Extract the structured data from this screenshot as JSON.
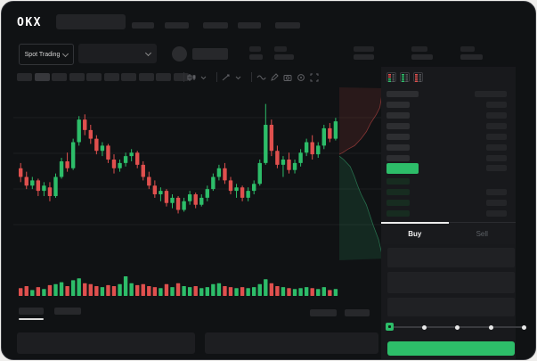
{
  "navbar": {
    "logo": "OKX",
    "nav_item_count": 5,
    "search_placeholder": ""
  },
  "subheader": {
    "market_type": "Spot Trading",
    "stat_group_count": 5
  },
  "toolbar": {
    "timeframe_button_count": 10,
    "icons": [
      "candle-style-icon",
      "chevron-down-icon",
      "compare-icon",
      "chevron-down-icon",
      "wave-icon",
      "draw-icon",
      "camera-icon",
      "settings-icon",
      "fullscreen-icon"
    ]
  },
  "orderbook": {
    "view_icons": [
      "combined-book-icon",
      "bids-book-icon",
      "asks-book-icon"
    ],
    "ask_row_count": 6,
    "bid_rows": [
      {
        "has_amount": false
      },
      {
        "has_amount": true
      },
      {
        "has_amount": true
      },
      {
        "has_amount": true
      }
    ],
    "price_highlight_color": "#2dbd69"
  },
  "trade_panel": {
    "buy_tab": "Buy",
    "sell_tab": "Sell",
    "slider_stop_count": 5,
    "slider_value_pct": 0,
    "buy_button_color": "#2dbd69"
  },
  "chart_data": {
    "type": "candlestick",
    "title": "",
    "note": "OHLC values in normalized price units; no axis tick labels are visible in the screenshot",
    "price_range": [
      0,
      100
    ],
    "grid": true,
    "candles": [
      [
        55,
        58,
        47,
        50
      ],
      [
        50,
        53,
        43,
        45
      ],
      [
        45,
        50,
        43,
        48
      ],
      [
        48,
        49,
        39,
        42
      ],
      [
        42,
        47,
        39,
        45
      ],
      [
        44,
        47,
        36,
        39
      ],
      [
        39,
        52,
        38,
        50
      ],
      [
        50,
        61,
        49,
        59
      ],
      [
        59,
        64,
        53,
        55
      ],
      [
        55,
        72,
        54,
        70
      ],
      [
        70,
        85,
        68,
        83
      ],
      [
        83,
        86,
        74,
        77
      ],
      [
        77,
        80,
        69,
        72
      ],
      [
        72,
        74,
        63,
        65
      ],
      [
        65,
        70,
        62,
        68
      ],
      [
        68,
        69,
        58,
        60
      ],
      [
        60,
        63,
        52,
        55
      ],
      [
        55,
        60,
        53,
        58
      ],
      [
        58,
        64,
        56,
        62
      ],
      [
        62,
        66,
        59,
        64
      ],
      [
        64,
        65,
        55,
        57
      ],
      [
        57,
        59,
        48,
        50
      ],
      [
        50,
        53,
        43,
        45
      ],
      [
        45,
        48,
        38,
        40
      ],
      [
        40,
        44,
        36,
        42
      ],
      [
        42,
        43,
        33,
        35
      ],
      [
        35,
        40,
        32,
        38
      ],
      [
        38,
        39,
        29,
        31
      ],
      [
        31,
        38,
        30,
        36
      ],
      [
        36,
        42,
        34,
        40
      ],
      [
        40,
        41,
        32,
        34
      ],
      [
        34,
        40,
        33,
        38
      ],
      [
        38,
        45,
        36,
        43
      ],
      [
        43,
        52,
        42,
        50
      ],
      [
        50,
        57,
        48,
        55
      ],
      [
        55,
        58,
        46,
        48
      ],
      [
        48,
        50,
        40,
        42
      ],
      [
        42,
        46,
        38,
        44
      ],
      [
        44,
        45,
        36,
        38
      ],
      [
        38,
        44,
        36,
        42
      ],
      [
        42,
        48,
        40,
        46
      ],
      [
        46,
        60,
        45,
        58
      ],
      [
        58,
        92,
        57,
        80
      ],
      [
        80,
        83,
        62,
        65
      ],
      [
        65,
        68,
        55,
        57
      ],
      [
        57,
        62,
        50,
        60
      ],
      [
        60,
        64,
        52,
        54
      ],
      [
        54,
        60,
        52,
        58
      ],
      [
        58,
        66,
        56,
        64
      ],
      [
        64,
        72,
        62,
        70
      ],
      [
        70,
        74,
        60,
        63
      ],
      [
        63,
        70,
        61,
        68
      ],
      [
        68,
        80,
        66,
        78
      ],
      [
        78,
        81,
        70,
        72
      ],
      [
        72,
        84,
        71,
        82
      ]
    ],
    "volumes": [
      8,
      10,
      6,
      9,
      7,
      11,
      12,
      14,
      10,
      16,
      18,
      13,
      12,
      10,
      9,
      11,
      10,
      12,
      20,
      13,
      11,
      12,
      10,
      9,
      8,
      12,
      9,
      13,
      10,
      9,
      10,
      8,
      9,
      12,
      13,
      10,
      9,
      8,
      9,
      8,
      9,
      12,
      17,
      13,
      10,
      9,
      8,
      7,
      8,
      9,
      8,
      7,
      9,
      6,
      7
    ],
    "depth": {
      "asks": [
        [
          101,
          1
        ],
        [
          90,
          0.93
        ],
        [
          86,
          0.85
        ],
        [
          81,
          0.72
        ],
        [
          76,
          0.62
        ],
        [
          72,
          0.5
        ],
        [
          68,
          0.35
        ],
        [
          66,
          0.2
        ],
        [
          64,
          0.08
        ],
        [
          63,
          0
        ]
      ],
      "bids": [
        [
          62,
          0
        ],
        [
          60,
          0.1
        ],
        [
          56,
          0.25
        ],
        [
          50,
          0.35
        ],
        [
          45,
          0.42
        ],
        [
          40,
          0.5
        ],
        [
          34,
          0.62
        ],
        [
          28,
          0.7
        ],
        [
          22,
          0.78
        ],
        [
          14,
          0.9
        ],
        [
          3,
          1
        ]
      ]
    },
    "colors": {
      "up": "#2dbd69",
      "down": "#e0504e",
      "depth_ask_fill": "rgba(200,70,65,0.14)",
      "depth_bid_fill": "rgba(45,160,105,0.16)"
    }
  }
}
